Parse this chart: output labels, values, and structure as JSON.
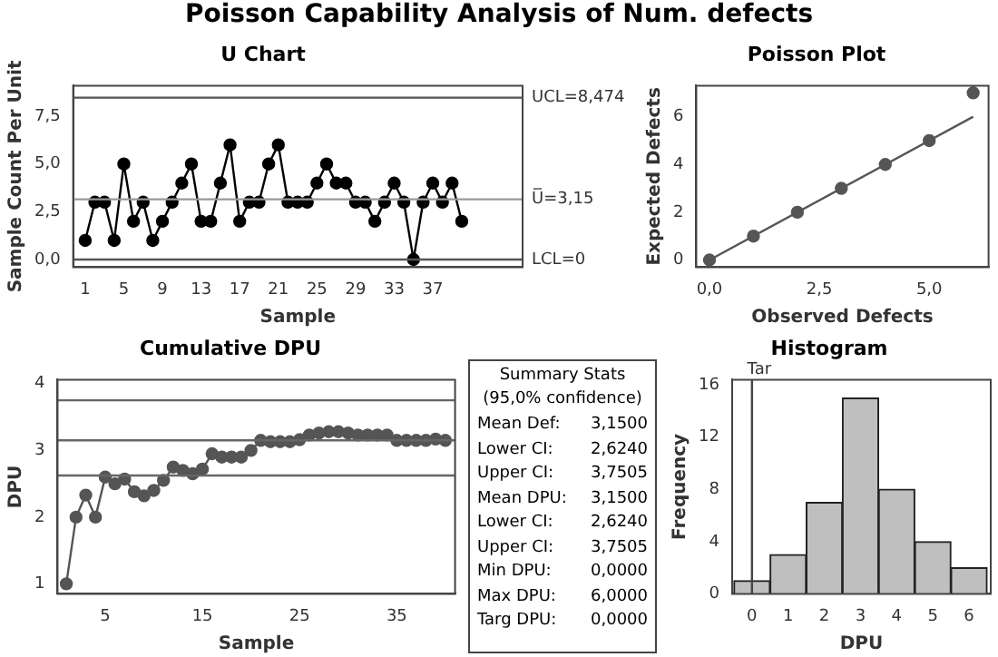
{
  "chart_data": [
    {
      "type": "other",
      "title": "Poisson Capability Analysis of Num. defects"
    },
    {
      "type": "line",
      "title": "U Chart",
      "xlabel": "Sample",
      "ylabel": "Sample Count Per Unit",
      "marker": "circle",
      "x": [
        1,
        2,
        3,
        4,
        5,
        6,
        7,
        8,
        9,
        10,
        11,
        12,
        13,
        14,
        15,
        16,
        17,
        18,
        19,
        20,
        21,
        22,
        23,
        24,
        25,
        26,
        27,
        28,
        29,
        30,
        31,
        32,
        33,
        34,
        35,
        36,
        37,
        38,
        39,
        40
      ],
      "series": [
        {
          "color": "#000000",
          "values": [
            1,
            3,
            3,
            1,
            5,
            2,
            3,
            1,
            2,
            3,
            4,
            5,
            2,
            2,
            4,
            6,
            2,
            3,
            3,
            5,
            6,
            3,
            3,
            3,
            4,
            5,
            4,
            4,
            3,
            3,
            2,
            3,
            4,
            3,
            0,
            3,
            4,
            3,
            4,
            2
          ]
        }
      ],
      "xlim": [
        -0.25,
        46.3
      ],
      "xticks": [
        1,
        5,
        9,
        13,
        17,
        21,
        25,
        29,
        33,
        37
      ],
      "ylim": [
        -0.4,
        9.1
      ],
      "yticks": [
        {
          "value": 0,
          "label": "0,0"
        },
        {
          "value": 2.5,
          "label": "2,5"
        },
        {
          "value": 5,
          "label": "5,0"
        },
        {
          "value": 7.5,
          "label": "7,5"
        }
      ],
      "ref_lines": [
        {
          "axis": "y",
          "value": 8.474,
          "label": "UCL=8,474",
          "color": "#555555"
        },
        {
          "axis": "y",
          "value": 3.15,
          "label": "U̅=3,15",
          "color": "#999999"
        },
        {
          "axis": "y",
          "value": 0,
          "label": "LCL=0",
          "color": "#555555"
        }
      ]
    },
    {
      "type": "scatter",
      "title": "Poisson Plot",
      "xlabel": "Observed Defects",
      "ylabel": "Expected Defects",
      "marker": "circle",
      "series": [
        {
          "type": "scatter",
          "color": "#555555",
          "x": [
            0,
            1,
            2,
            3,
            4,
            5,
            6
          ],
          "values": [
            0,
            1,
            2,
            3,
            4,
            5,
            7
          ]
        },
        {
          "type": "line",
          "color": "#555555",
          "x": [
            0,
            6
          ],
          "values": [
            0,
            6
          ],
          "marker": "none"
        }
      ],
      "xlim": [
        -0.3,
        6.35
      ],
      "xticks": [
        {
          "value": 0,
          "label": "0,0"
        },
        {
          "value": 2.5,
          "label": "2,5"
        },
        {
          "value": 5,
          "label": "5,0"
        }
      ],
      "ylim": [
        -0.3,
        7.3
      ],
      "yticks": [
        0,
        2,
        4,
        6
      ]
    },
    {
      "type": "line",
      "title": "Cumulative DPU",
      "xlabel": "Sample",
      "ylabel": "DPU",
      "marker": "circle",
      "x": [
        1,
        2,
        3,
        4,
        5,
        6,
        7,
        8,
        9,
        10,
        11,
        12,
        13,
        14,
        15,
        16,
        17,
        18,
        19,
        20,
        21,
        22,
        23,
        24,
        25,
        26,
        27,
        28,
        29,
        30,
        31,
        32,
        33,
        34,
        35,
        36,
        37,
        38,
        39,
        40
      ],
      "series": [
        {
          "color": "#555555",
          "values": [
            1,
            2,
            2.33,
            2,
            2.6,
            2.5,
            2.57,
            2.38,
            2.32,
            2.4,
            2.55,
            2.75,
            2.7,
            2.65,
            2.72,
            2.95,
            2.9,
            2.9,
            2.9,
            3,
            3.15,
            3.13,
            3.13,
            3.13,
            3.16,
            3.23,
            3.26,
            3.28,
            3.28,
            3.26,
            3.23,
            3.23,
            3.23,
            3.23,
            3.15,
            3.15,
            3.15,
            3.15,
            3.17,
            3.15
          ]
        }
      ],
      "xlim": [
        0.1,
        41
      ],
      "xticks": [
        5,
        15,
        25,
        35
      ],
      "ylim": [
        0.85,
        4.06
      ],
      "yticks": [
        1,
        2,
        3,
        4
      ],
      "ref_lines": [
        {
          "axis": "y",
          "value": 3.7505,
          "color": "#666666"
        },
        {
          "axis": "y",
          "value": 3.15,
          "color": "#666666"
        },
        {
          "axis": "y",
          "value": 2.624,
          "color": "#666666"
        }
      ]
    },
    {
      "type": "other",
      "title": "Summary Stats",
      "subtitle": "(95,0% confidence)",
      "annotations": [
        "Mean Def: 3,1500",
        "Lower CI: 2,6240",
        "Upper CI: 3,7505",
        "Mean DPU: 3,1500",
        "Lower CI: 2,6240",
        "Upper CI: 3,7505",
        "Min DPU: 0,0000",
        "Max DPU: 6,0000",
        "Targ DPU: 0,0000"
      ]
    },
    {
      "type": "histogram",
      "title": "Histogram",
      "xlabel": "DPU",
      "ylabel": "Frequency",
      "color": "#bfbfbf",
      "bins": [
        -0.5,
        0.5,
        1.5,
        2.5,
        3.5,
        4.5,
        5.5,
        6.5
      ],
      "values": [
        1,
        3,
        7,
        15,
        8,
        4,
        2
      ],
      "xlim": [
        -0.55,
        6.6
      ],
      "xticks": [
        0,
        1,
        2,
        3,
        4,
        5,
        6
      ],
      "ylim": [
        0,
        16.4
      ],
      "yticks": [
        0,
        4,
        8,
        12,
        16
      ],
      "ref_lines": [
        {
          "axis": "x",
          "value": 0,
          "label": "Tar",
          "color": "#444444"
        }
      ]
    }
  ]
}
